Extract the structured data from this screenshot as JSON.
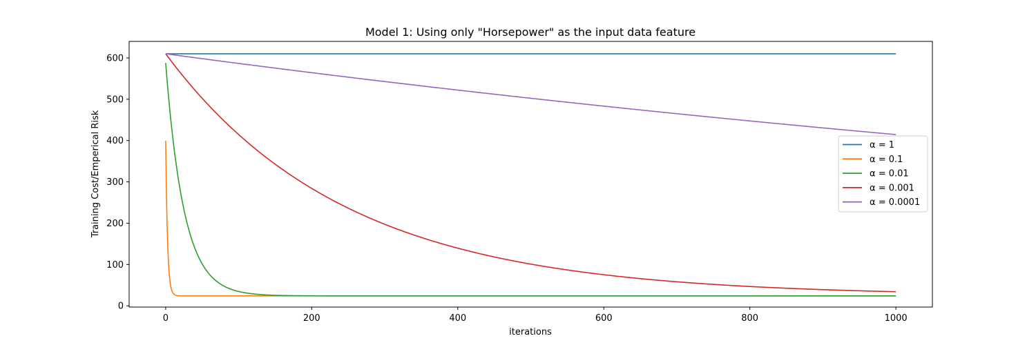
{
  "chart_data": {
    "type": "line",
    "title": "Model 1: Using only  \"Horsepower\" as the input data feature",
    "xlabel": "iterations",
    "ylabel": "Training Cost/Emperical Risk",
    "xlim": [
      -50,
      1050
    ],
    "ylim": [
      -3,
      640
    ],
    "xticks": [
      0,
      200,
      400,
      600,
      800,
      1000
    ],
    "yticks": [
      0,
      100,
      200,
      300,
      400,
      500,
      600
    ],
    "grid": false,
    "legend_position": "center-right",
    "series": [
      {
        "name": "α = 1",
        "color": "#1f77b4",
        "model": {
          "kind": "constant",
          "start": 610
        }
      },
      {
        "name": "α = 0.1",
        "color": "#ff7f0e",
        "model": {
          "kind": "exp_decay",
          "start": 400,
          "floor": 24,
          "rate": 0.4
        }
      },
      {
        "name": "α = 0.01",
        "color": "#2ca02c",
        "model": {
          "kind": "exp_decay",
          "start": 588,
          "floor": 24,
          "rate": 0.0397
        }
      },
      {
        "name": "α = 0.001",
        "color": "#d62728",
        "model": {
          "kind": "exp_decay",
          "start": 610,
          "floor": 24,
          "rate": 0.00406
        }
      },
      {
        "name": "α = 0.0001",
        "color": "#9467bd",
        "model": {
          "kind": "exp_decay",
          "start": 610,
          "floor": 24,
          "rate": 0.000406
        }
      }
    ]
  }
}
